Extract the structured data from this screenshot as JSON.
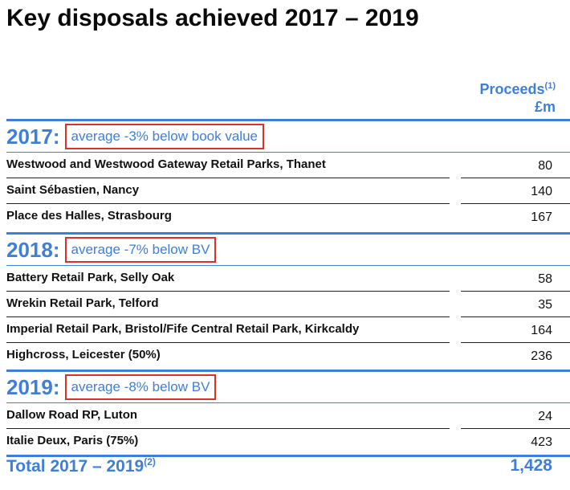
{
  "title": "Key disposals achieved 2017 – 2019",
  "column_header": {
    "line1": "Proceeds",
    "note": "(1)",
    "line2": "£m"
  },
  "sections": [
    {
      "year": "2017:",
      "note": "average -3% below book value",
      "rows": [
        {
          "name": "Westwood and Westwood Gateway Retail Parks, Thanet",
          "value": "80"
        },
        {
          "name": "Saint Sébastien, Nancy",
          "value": "140"
        },
        {
          "name": "Place des Halles, Strasbourg",
          "value": "167"
        }
      ]
    },
    {
      "year": "2018:",
      "note": "average -7% below BV",
      "rows": [
        {
          "name": "Battery Retail Park, Selly Oak",
          "value": "58"
        },
        {
          "name": "Wrekin Retail Park, Telford",
          "value": "35"
        },
        {
          "name": "Imperial Retail Park, Bristol/Fife Central Retail Park, Kirkcaldy",
          "value": "164"
        },
        {
          "name": "Highcross, Leicester (50%)",
          "value": "236"
        }
      ]
    },
    {
      "year": "2019:",
      "note": "average -8% below BV",
      "rows": [
        {
          "name": "Dallow Road RP, Luton",
          "value": "24"
        },
        {
          "name": "Italie Deux, Paris (75%)",
          "value": "423"
        }
      ]
    }
  ],
  "total": {
    "label": "Total 2017 – 2019",
    "note": "(2)",
    "value": "1,428"
  },
  "colors": {
    "accent": "#3f7fd8",
    "highlight_box": "#d9322a"
  }
}
